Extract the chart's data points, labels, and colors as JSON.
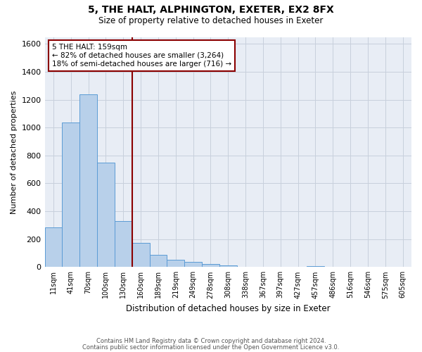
{
  "title": "5, THE HALT, ALPHINGTON, EXETER, EX2 8FX",
  "subtitle": "Size of property relative to detached houses in Exeter",
  "xlabel": "Distribution of detached houses by size in Exeter",
  "ylabel": "Number of detached properties",
  "footer_line1": "Contains HM Land Registry data © Crown copyright and database right 2024.",
  "footer_line2": "Contains public sector information licensed under the Open Government Licence v3.0.",
  "bin_labels": [
    "11sqm",
    "41sqm",
    "70sqm",
    "100sqm",
    "130sqm",
    "160sqm",
    "189sqm",
    "219sqm",
    "249sqm",
    "278sqm",
    "308sqm",
    "338sqm",
    "367sqm",
    "397sqm",
    "427sqm",
    "457sqm",
    "486sqm",
    "516sqm",
    "546sqm",
    "575sqm",
    "605sqm"
  ],
  "bar_values": [
    285,
    1035,
    1240,
    750,
    330,
    175,
    85,
    50,
    38,
    20,
    12,
    0,
    0,
    0,
    0,
    8,
    0,
    0,
    0,
    0,
    0
  ],
  "bar_color": "#b8d0ea",
  "bar_edge_color": "#5b9bd5",
  "ylim": [
    0,
    1650
  ],
  "yticks": [
    0,
    200,
    400,
    600,
    800,
    1000,
    1200,
    1400,
    1600
  ],
  "property_line_color": "#8b0000",
  "annotation_title": "5 THE HALT: 159sqm",
  "annotation_line1": "← 82% of detached houses are smaller (3,264)",
  "annotation_line2": "18% of semi-detached houses are larger (716) →",
  "annotation_box_color": "#8b0000",
  "background_color": "#ffffff",
  "plot_bg_color": "#e8edf5",
  "grid_color": "#c8d0dc"
}
